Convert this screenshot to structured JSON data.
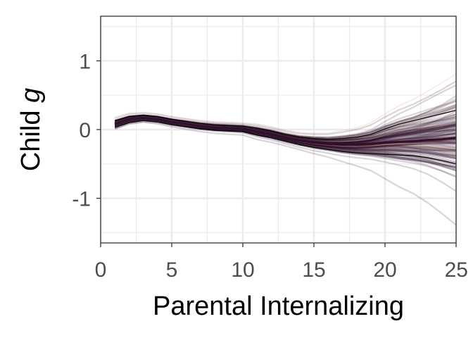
{
  "chart_data": {
    "type": "line",
    "title": "",
    "xlabel": "Parental Internalizing",
    "ylabel_parts": [
      {
        "text": "Child ",
        "italic": false
      },
      {
        "text": "g",
        "italic": true
      }
    ],
    "xlim": [
      0,
      25
    ],
    "ylim": [
      -1.65,
      1.65
    ],
    "x_ticks": [
      0,
      5,
      10,
      15,
      20,
      25
    ],
    "y_ticks": [
      -1,
      0,
      1
    ],
    "x_tick_labels": [
      "0",
      "5",
      "10",
      "15",
      "20",
      "25"
    ],
    "y_tick_labels": [
      "-1",
      "0",
      "1"
    ],
    "grid": true,
    "legend": "none",
    "colors": {
      "bootstrap_dark": "#2e0f2e",
      "bootstrap_light": "#e0a889",
      "interval": "#000000",
      "grid": "#ebebeb",
      "panel_border": "#333333"
    },
    "series": [
      {
        "role": "estimate",
        "x": [
          1,
          2,
          3,
          4,
          5,
          6,
          7,
          8,
          9,
          10,
          11,
          12,
          13,
          14,
          15,
          16,
          17,
          18,
          19,
          20,
          21,
          22,
          23,
          24,
          25
        ],
        "y": [
          0.08,
          0.15,
          0.17,
          0.15,
          0.11,
          0.08,
          0.05,
          0.03,
          0.02,
          0.01,
          -0.03,
          -0.07,
          -0.12,
          -0.16,
          -0.19,
          -0.21,
          -0.22,
          -0.22,
          -0.21,
          -0.19,
          -0.18,
          -0.17,
          -0.15,
          -0.14,
          -0.12
        ]
      },
      {
        "role": "upper-bound",
        "x": [
          1,
          2,
          3,
          4,
          5,
          6,
          7,
          8,
          9,
          10,
          11,
          12,
          13,
          14,
          15,
          16,
          17,
          18,
          19,
          20,
          21,
          22,
          23,
          24,
          25
        ],
        "y": [
          0.13,
          0.19,
          0.21,
          0.19,
          0.15,
          0.12,
          0.09,
          0.07,
          0.06,
          0.05,
          0.02,
          -0.02,
          -0.07,
          -0.11,
          -0.13,
          -0.14,
          -0.13,
          -0.11,
          -0.07,
          0.01,
          0.08,
          0.13,
          0.18,
          0.23,
          0.28
        ]
      },
      {
        "role": "lower-bound",
        "x": [
          1,
          2,
          3,
          4,
          5,
          6,
          7,
          8,
          9,
          10,
          11,
          12,
          13,
          14,
          15,
          16,
          17,
          18,
          19,
          20,
          21,
          22,
          23,
          24,
          25
        ],
        "y": [
          0.03,
          0.1,
          0.13,
          0.11,
          0.07,
          0.04,
          0.01,
          -0.01,
          -0.02,
          -0.03,
          -0.08,
          -0.12,
          -0.17,
          -0.22,
          -0.26,
          -0.29,
          -0.32,
          -0.34,
          -0.35,
          -0.36,
          -0.37,
          -0.38,
          -0.41,
          -0.45,
          -0.5
        ]
      }
    ]
  }
}
